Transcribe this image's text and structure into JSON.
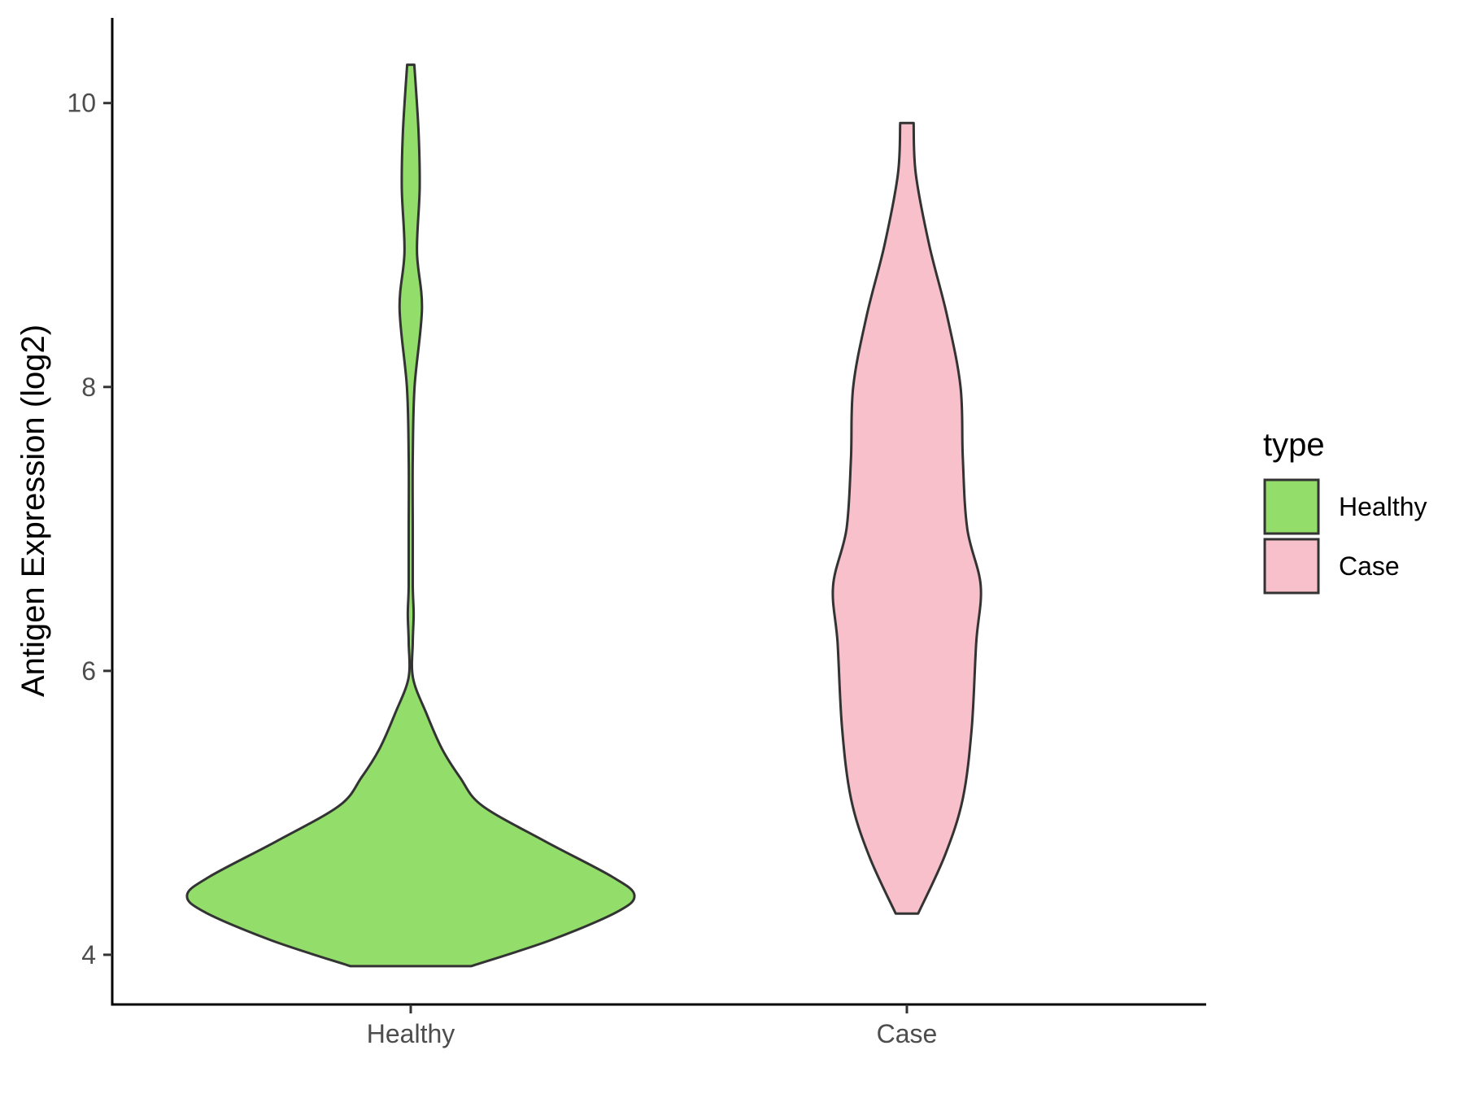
{
  "chart_data": {
    "type": "violin",
    "ylabel": "Antigen Expression (log2)",
    "xlabel": "",
    "ylim": [
      3.65,
      10.6
    ],
    "y_ticks": [
      4,
      6,
      8,
      10
    ],
    "categories": [
      "Healthy",
      "Case"
    ],
    "legend": {
      "title": "type",
      "position": "right",
      "entries": [
        {
          "label": "Healthy",
          "color": "#93DD6A"
        },
        {
          "label": "Case",
          "color": "#F7C0CB"
        }
      ]
    },
    "grid": false,
    "series": [
      {
        "name": "Healthy",
        "color": "#93DD6A",
        "min": 3.92,
        "max": 10.27,
        "density_profile": [
          [
            3.92,
            0.27
          ],
          [
            4.1,
            0.62
          ],
          [
            4.3,
            0.92
          ],
          [
            4.42,
            1.0
          ],
          [
            4.55,
            0.9
          ],
          [
            4.8,
            0.6
          ],
          [
            5.05,
            0.32
          ],
          [
            5.25,
            0.22
          ],
          [
            5.45,
            0.14
          ],
          [
            5.7,
            0.07
          ],
          [
            5.95,
            0.01
          ],
          [
            6.2,
            0.0
          ],
          [
            6.4,
            0.013
          ],
          [
            6.6,
            0.005
          ],
          [
            7.0,
            0.004
          ],
          [
            7.5,
            0.009
          ],
          [
            8.0,
            0.017
          ],
          [
            8.55,
            0.05
          ],
          [
            8.95,
            0.028
          ],
          [
            9.4,
            0.04
          ],
          [
            9.8,
            0.035
          ],
          [
            10.27,
            0.016
          ]
        ]
      },
      {
        "name": "Case",
        "color": "#F7C0CB",
        "min": 4.29,
        "max": 9.86,
        "density_profile": [
          [
            4.29,
            0.05
          ],
          [
            4.7,
            0.17
          ],
          [
            5.1,
            0.25
          ],
          [
            5.6,
            0.29
          ],
          [
            6.2,
            0.31
          ],
          [
            6.6,
            0.33
          ],
          [
            7.0,
            0.27
          ],
          [
            7.5,
            0.25
          ],
          [
            8.0,
            0.24
          ],
          [
            8.5,
            0.18
          ],
          [
            9.0,
            0.1
          ],
          [
            9.5,
            0.04
          ],
          [
            9.86,
            0.03
          ]
        ]
      }
    ]
  }
}
